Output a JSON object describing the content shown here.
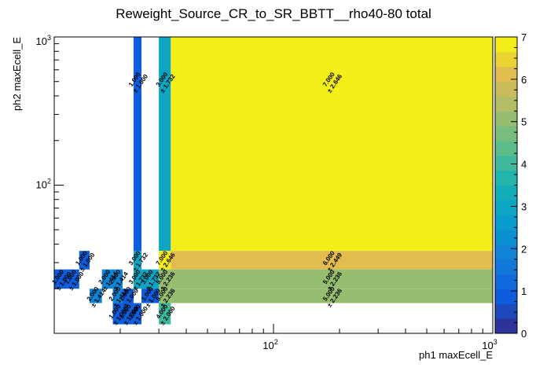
{
  "chart_data": {
    "type": "heatmap",
    "title": "Reweight_Source_CR_to_SR_BBTT__rho40-80 total",
    "xlabel": "ph1 maxEcell_E",
    "ylabel": "ph2 maxEcell_E",
    "xscale": "log",
    "yscale": "log",
    "xlim": [
      10,
      1000
    ],
    "ylim": [
      10,
      1000
    ],
    "x_tick_labels": [
      "10^2",
      "10^3"
    ],
    "y_tick_labels": [
      "10^2",
      "10^3"
    ],
    "colorbar": {
      "min": 0,
      "max": 7,
      "ticks": [
        0,
        1,
        2,
        3,
        4,
        5,
        6,
        7
      ]
    },
    "cells": [
      {
        "x0": 10,
        "x1": 11.5,
        "y0": 20,
        "y1": 27,
        "value": 1.0,
        "error": 1.0,
        "label": "1.000",
        "err_label": "± 1.000"
      },
      {
        "x0": 11.5,
        "x1": 13,
        "y0": 20,
        "y1": 27,
        "value": 1.0,
        "error": 1.0,
        "label": "1.000",
        "err_label": "± 1.000"
      },
      {
        "x0": 13,
        "x1": 14.5,
        "y0": 27,
        "y1": 36,
        "value": 1.0,
        "error": 1.0,
        "label": "1.000",
        "err_label": "± 1.000"
      },
      {
        "x0": 14.5,
        "x1": 16.5,
        "y0": 16,
        "y1": 20,
        "value": 2.0,
        "error": 1.414,
        "label": "2.000",
        "err_label": "± 1.414"
      },
      {
        "x0": 16.5,
        "x1": 18.5,
        "y0": 20,
        "y1": 27,
        "value": 2.0,
        "error": 1.414,
        "label": "2.000",
        "err_label": "± 1.414"
      },
      {
        "x0": 18.5,
        "x1": 20.5,
        "y0": 20,
        "y1": 27,
        "value": 2.0,
        "error": 1.414,
        "label": "2.000",
        "err_label": "± 1.414"
      },
      {
        "x0": 18.5,
        "x1": 20.5,
        "y0": 16,
        "y1": 20,
        "value": 2.0,
        "error": 1.414,
        "label": "2.000",
        "err_label": "± 1.414"
      },
      {
        "x0": 18.5,
        "x1": 20.5,
        "y0": 11.5,
        "y1": 16,
        "value": 1.0,
        "error": 1.0,
        "label": "1.000",
        "err_label": "± 1.000"
      },
      {
        "x0": 20.5,
        "x1": 23,
        "y0": 16,
        "y1": 20,
        "value": 1.0,
        "error": 1.0,
        "label": "1.000",
        "err_label": "± 1.000"
      },
      {
        "x0": 20.5,
        "x1": 23,
        "y0": 11.5,
        "y1": 16,
        "value": 1.0,
        "error": 1.0,
        "label": "1.000",
        "err_label": "± 1.000"
      },
      {
        "x0": 23,
        "x1": 25,
        "y0": 36,
        "y1": 1000,
        "value": 1.0,
        "error": 1.0,
        "label": "1.000",
        "err_label": "± 1.000"
      },
      {
        "x0": 23,
        "x1": 25,
        "y0": 27,
        "y1": 36,
        "value": 3.0,
        "error": 1.732,
        "label": "3.000",
        "err_label": "± 1.732"
      },
      {
        "x0": 23,
        "x1": 25,
        "y0": 20,
        "y1": 27,
        "value": 3.0,
        "error": 1.732,
        "label": "3.000",
        "err_label": "± 1.732"
      },
      {
        "x0": 23,
        "x1": 25,
        "y0": 11.5,
        "y1": 16,
        "value": 1.0,
        "error": 1.0,
        "label": "1.000",
        "err_label": "± 1.000"
      },
      {
        "x0": 25,
        "x1": 30,
        "y0": 20,
        "y1": 27,
        "value": 3.0,
        "error": 1.732,
        "label": "3.000",
        "err_label": "± 1.732"
      },
      {
        "x0": 25,
        "x1": 30,
        "y0": 16,
        "y1": 20,
        "value": 1.0,
        "error": 1.0,
        "label": "1.000",
        "err_label": "± 1.000"
      },
      {
        "x0": 30,
        "x1": 34,
        "y0": 36,
        "y1": 1000,
        "value": 3.0,
        "error": 1.732,
        "label": "3.000",
        "err_label": "± 1.732"
      },
      {
        "x0": 30,
        "x1": 34,
        "y0": 27,
        "y1": 36,
        "value": 7.0,
        "error": 2.646,
        "label": "7.000",
        "err_label": "± 2.646"
      },
      {
        "x0": 30,
        "x1": 34,
        "y0": 20,
        "y1": 27,
        "value": 5.0,
        "error": 2.236,
        "label": "5.000",
        "err_label": "± 2.236"
      },
      {
        "x0": 30,
        "x1": 34,
        "y0": 16,
        "y1": 20,
        "value": 5.0,
        "error": 2.236,
        "label": "5.000",
        "err_label": "± 2.236"
      },
      {
        "x0": 30,
        "x1": 34,
        "y0": 11.5,
        "y1": 16,
        "value": 4.0,
        "error": 2.0,
        "label": "4.000",
        "err_label": "± 2.000"
      },
      {
        "x0": 34,
        "x1": 1000,
        "y0": 36,
        "y1": 1000,
        "value": 7.0,
        "error": 2.646,
        "label": "7.000",
        "err_label": "± 2.646"
      },
      {
        "x0": 34,
        "x1": 1000,
        "y0": 27,
        "y1": 36,
        "value": 6.0,
        "error": 2.449,
        "label": "6.000",
        "err_label": "± 2.449"
      },
      {
        "x0": 34,
        "x1": 1000,
        "y0": 20,
        "y1": 27,
        "value": 5.0,
        "error": 2.236,
        "label": "5.000",
        "err_label": "± 2.236"
      },
      {
        "x0": 34,
        "x1": 1000,
        "y0": 16,
        "y1": 20,
        "value": 5.0,
        "error": 2.236,
        "label": "5.000",
        "err_label": "± 2.236"
      }
    ]
  }
}
